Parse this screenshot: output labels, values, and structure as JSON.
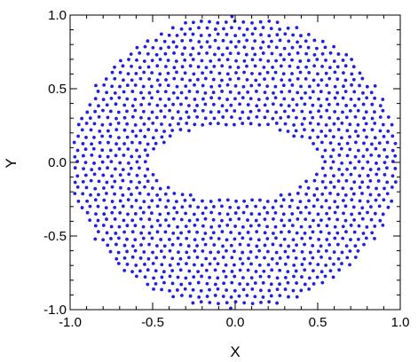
{
  "chart_data": {
    "type": "scatter",
    "title": "",
    "xlabel": "X",
    "ylabel": "Y",
    "xlim": [
      -1.0,
      1.0
    ],
    "ylim": [
      -1.0,
      1.0
    ],
    "grid": false,
    "x_ticks": [
      "-1.0",
      "-0.5",
      "0.0",
      "0.5",
      "1.0"
    ],
    "y_ticks": [
      "-1.0",
      "-0.5",
      "0.0",
      "0.5",
      "1.0"
    ],
    "marker_color": "#2020e0",
    "domain": {
      "outer_circle_radius": 1.0,
      "inner_ellipse_semi_axis_x": 0.5,
      "inner_ellipse_semi_axis_y": 0.25,
      "point_spacing": 0.05
    }
  }
}
